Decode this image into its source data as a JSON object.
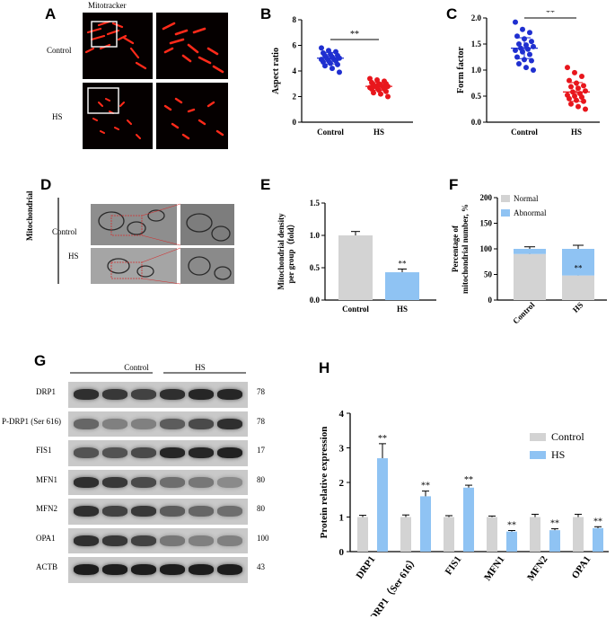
{
  "panels": {
    "A": {
      "label": "A",
      "stain": "Mitotracker",
      "row_labels": [
        "Control",
        "HS"
      ]
    },
    "D": {
      "label": "D",
      "side_label": "Mitochondrial",
      "row_labels": [
        "Control",
        "HS"
      ]
    },
    "G": {
      "label": "G",
      "group_labels": [
        "Control",
        "HS"
      ],
      "rows": [
        {
          "protein": "DRP1",
          "kda": "78"
        },
        {
          "protein": "P-DRP1 (Ser 616)",
          "kda": "78"
        },
        {
          "protein": "FIS1",
          "kda": "17"
        },
        {
          "protein": "MFN1",
          "kda": "80"
        },
        {
          "protein": "MFN2",
          "kda": "80"
        },
        {
          "protein": "OPA1",
          "kda": "100"
        },
        {
          "protein": "ACTB",
          "kda": "43"
        }
      ]
    }
  },
  "colors": {
    "control_blue": "#1f2fd0",
    "hs_red": "#e8161c",
    "bar_gray": "#d3d3d3",
    "bar_blue": "#8fc3f3"
  },
  "chart_data": [
    {
      "panel": "B",
      "type": "scatter",
      "categories": [
        "Control",
        "HS"
      ],
      "ylabel": "Aspect ratio",
      "ylim": [
        0,
        8
      ],
      "yticks": [
        0,
        2,
        4,
        6,
        8
      ],
      "significance": "**",
      "series": [
        {
          "name": "Control",
          "mean": 5.0,
          "sd": 0.45,
          "values": [
            5.8,
            5.6,
            5.5,
            5.4,
            5.3,
            5.2,
            5.2,
            5.1,
            5.0,
            5.0,
            4.9,
            4.9,
            4.8,
            4.8,
            4.7,
            4.6,
            4.5,
            4.4,
            4.2,
            3.9
          ]
        },
        {
          "name": "HS",
          "mean": 2.8,
          "sd": 0.3,
          "values": [
            3.4,
            3.3,
            3.2,
            3.1,
            3.0,
            3.0,
            2.9,
            2.9,
            2.8,
            2.8,
            2.8,
            2.7,
            2.7,
            2.6,
            2.6,
            2.5,
            2.4,
            2.3,
            2.2,
            2.0
          ]
        }
      ]
    },
    {
      "panel": "C",
      "type": "scatter",
      "categories": [
        "Control",
        "HS"
      ],
      "ylabel": "Form factor",
      "ylim": [
        0,
        2.0
      ],
      "yticks": [
        0.0,
        0.5,
        1.0,
        1.5,
        2.0
      ],
      "significance": "**",
      "series": [
        {
          "name": "Control",
          "mean": 1.42,
          "sd": 0.2,
          "values": [
            1.92,
            1.78,
            1.72,
            1.65,
            1.6,
            1.55,
            1.5,
            1.48,
            1.45,
            1.42,
            1.4,
            1.38,
            1.35,
            1.3,
            1.25,
            1.2,
            1.18,
            1.12,
            1.05,
            1.0
          ]
        },
        {
          "name": "HS",
          "mean": 0.58,
          "sd": 0.18,
          "values": [
            1.05,
            0.95,
            0.88,
            0.8,
            0.75,
            0.7,
            0.68,
            0.65,
            0.6,
            0.58,
            0.55,
            0.52,
            0.5,
            0.48,
            0.45,
            0.42,
            0.4,
            0.35,
            0.3,
            0.25
          ]
        }
      ]
    },
    {
      "panel": "E",
      "type": "bar",
      "categories": [
        "Control",
        "HS"
      ],
      "values": [
        1.0,
        0.43
      ],
      "errors": [
        0.06,
        0.05
      ],
      "annotations": [
        "",
        "**"
      ],
      "ylabel_lines": [
        "Mitochondrial density",
        "per group（fold）"
      ],
      "ylim": [
        0,
        1.5
      ],
      "yticks": [
        "0.0",
        "0.5",
        "1.0",
        "1.5"
      ]
    },
    {
      "panel": "F",
      "type": "bar",
      "stacked": true,
      "categories": [
        "Control",
        "HS"
      ],
      "series": [
        {
          "name": "Normal",
          "values": [
            90,
            48
          ],
          "errors": [
            3,
            4
          ]
        },
        {
          "name": "Abnormal",
          "values": [
            10,
            52
          ],
          "errors": [
            4,
            7
          ]
        }
      ],
      "annotations": [
        "",
        "**"
      ],
      "ylabel_lines": [
        "Percentage of",
        "mitochondrial number, %"
      ],
      "ylim": [
        0,
        200
      ],
      "yticks": [
        "0",
        "50",
        "100",
        "150",
        "200"
      ],
      "legend_position": "top-left"
    },
    {
      "panel": "H",
      "type": "bar",
      "categories": [
        "DRP1",
        "P-DRP1（Ser 616）",
        "FIS1",
        "MFN1",
        "MFN2",
        "OPA1"
      ],
      "series": [
        {
          "name": "Control",
          "values": [
            1.0,
            1.0,
            1.0,
            1.0,
            1.0,
            1.0
          ],
          "errors": [
            0.05,
            0.06,
            0.04,
            0.03,
            0.08,
            0.08
          ]
        },
        {
          "name": "HS",
          "values": [
            2.7,
            1.6,
            1.85,
            0.58,
            0.62,
            0.68
          ],
          "errors": [
            0.42,
            0.15,
            0.07,
            0.03,
            0.04,
            0.04
          ]
        }
      ],
      "annotations": [
        "**",
        "**",
        "**",
        "**",
        "**",
        "**"
      ],
      "ylabel": "Protein relative expression",
      "ylim": [
        0,
        4
      ],
      "yticks": [
        "0",
        "1",
        "2",
        "3",
        "4"
      ],
      "legend_position": "top-right"
    }
  ]
}
